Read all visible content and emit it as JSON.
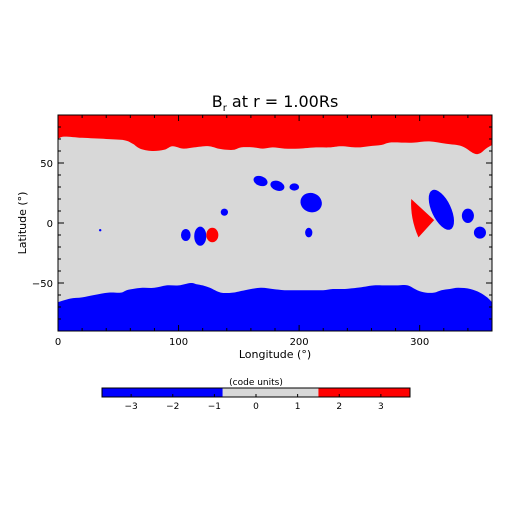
{
  "chart_data": {
    "type": "heatmap",
    "title": "B",
    "title_subscript": "r",
    "title_suffix": " at r = 1.00Rs",
    "xlabel": "Longitude (°)",
    "ylabel": "Latitude (°)",
    "xlim": [
      0,
      360
    ],
    "ylim": [
      -90,
      90
    ],
    "x_ticks": [
      0,
      100,
      200,
      300
    ],
    "y_ticks": [
      50,
      0,
      -50
    ],
    "colors": {
      "negative": "#0000ff",
      "neutral": "#d8d8d8",
      "positive": "#ff0000"
    },
    "north_boundary": [
      [
        0,
        70
      ],
      [
        5,
        72
      ],
      [
        20,
        71
      ],
      [
        40,
        70
      ],
      [
        55,
        69
      ],
      [
        62,
        66
      ],
      [
        68,
        62
      ],
      [
        78,
        60
      ],
      [
        88,
        61
      ],
      [
        95,
        64
      ],
      [
        104,
        62
      ],
      [
        113,
        63
      ],
      [
        125,
        64
      ],
      [
        133,
        62
      ],
      [
        140,
        61
      ],
      [
        146,
        61
      ],
      [
        152,
        63
      ],
      [
        162,
        63
      ],
      [
        170,
        62
      ],
      [
        178,
        63
      ],
      [
        188,
        62
      ],
      [
        200,
        62
      ],
      [
        214,
        63
      ],
      [
        225,
        63
      ],
      [
        235,
        64
      ],
      [
        248,
        63
      ],
      [
        258,
        64
      ],
      [
        268,
        65
      ],
      [
        275,
        67
      ],
      [
        285,
        67
      ],
      [
        295,
        67
      ],
      [
        308,
        68
      ],
      [
        322,
        66
      ],
      [
        335,
        64
      ],
      [
        345,
        58
      ],
      [
        350,
        58
      ],
      [
        355,
        62
      ],
      [
        360,
        65
      ]
    ],
    "south_boundary": [
      [
        0,
        -66
      ],
      [
        10,
        -63
      ],
      [
        20,
        -62
      ],
      [
        30,
        -60
      ],
      [
        42,
        -58
      ],
      [
        52,
        -58
      ],
      [
        57,
        -56
      ],
      [
        62,
        -55
      ],
      [
        70,
        -54
      ],
      [
        80,
        -54
      ],
      [
        90,
        -52
      ],
      [
        100,
        -52
      ],
      [
        110,
        -50
      ],
      [
        115,
        -51
      ],
      [
        120,
        -52
      ],
      [
        126,
        -54
      ],
      [
        135,
        -58
      ],
      [
        145,
        -58
      ],
      [
        155,
        -56
      ],
      [
        168,
        -54
      ],
      [
        178,
        -55
      ],
      [
        188,
        -56
      ],
      [
        200,
        -56
      ],
      [
        210,
        -56
      ],
      [
        220,
        -56
      ],
      [
        228,
        -55
      ],
      [
        238,
        -55
      ],
      [
        248,
        -54
      ],
      [
        255,
        -53
      ],
      [
        262,
        -52
      ],
      [
        272,
        -52
      ],
      [
        282,
        -52
      ],
      [
        290,
        -52
      ],
      [
        298,
        -56
      ],
      [
        305,
        -58
      ],
      [
        312,
        -58
      ],
      [
        318,
        -56
      ],
      [
        325,
        -55
      ],
      [
        332,
        -54
      ],
      [
        342,
        -55
      ],
      [
        350,
        -58
      ],
      [
        356,
        -62
      ],
      [
        360,
        -66
      ]
    ],
    "spots": [
      {
        "sign": "negative",
        "lon": 35,
        "lat": -6,
        "dlon": 1,
        "dlat": 1
      },
      {
        "sign": "negative",
        "lon": 106,
        "lat": -10,
        "dlon": 4,
        "dlat": 5
      },
      {
        "sign": "negative",
        "lon": 118,
        "lat": -11,
        "dlon": 5,
        "dlat": 8
      },
      {
        "sign": "positive",
        "lon": 128,
        "lat": -10,
        "dlon": 5,
        "dlat": 6
      },
      {
        "sign": "negative",
        "lon": 138,
        "lat": 9,
        "dlon": 3,
        "dlat": 3
      },
      {
        "sign": "negative",
        "lon": 168,
        "lat": 35,
        "dlon": 6,
        "dlat": 4
      },
      {
        "sign": "negative",
        "lon": 182,
        "lat": 31,
        "dlon": 6,
        "dlat": 4
      },
      {
        "sign": "negative",
        "lon": 196,
        "lat": 30,
        "dlon": 4,
        "dlat": 3
      },
      {
        "sign": "negative",
        "lon": 210,
        "lat": 17,
        "dlon": 9,
        "dlat": 8
      },
      {
        "sign": "negative",
        "lon": 208,
        "lat": -8,
        "dlon": 3,
        "dlat": 4
      },
      {
        "sign": "positive",
        "lon": 302,
        "lat": 4,
        "dlon": 10,
        "dlat": 16
      },
      {
        "sign": "negative",
        "lon": 318,
        "lat": 11,
        "dlon": 8,
        "dlat": 18
      },
      {
        "sign": "negative",
        "lon": 340,
        "lat": 6,
        "dlon": 5,
        "dlat": 6
      },
      {
        "sign": "negative",
        "lon": 350,
        "lat": -8,
        "dlon": 5,
        "dlat": 5
      }
    ]
  },
  "colorbar": {
    "label": "(code units)",
    "min": -3.7,
    "max": 3.7,
    "segments": [
      {
        "from": -3.7,
        "to": -0.8,
        "color": "#0000ff"
      },
      {
        "from": -0.8,
        "to": 1.5,
        "color": "#d8d8d8"
      },
      {
        "from": 1.5,
        "to": 3.7,
        "color": "#ff0000"
      }
    ],
    "ticks": [
      -3,
      -2,
      -1,
      0,
      1,
      2,
      3
    ],
    "tick_labels": [
      "−3",
      "−2",
      "−1",
      "0",
      "1",
      "2",
      "3"
    ]
  }
}
